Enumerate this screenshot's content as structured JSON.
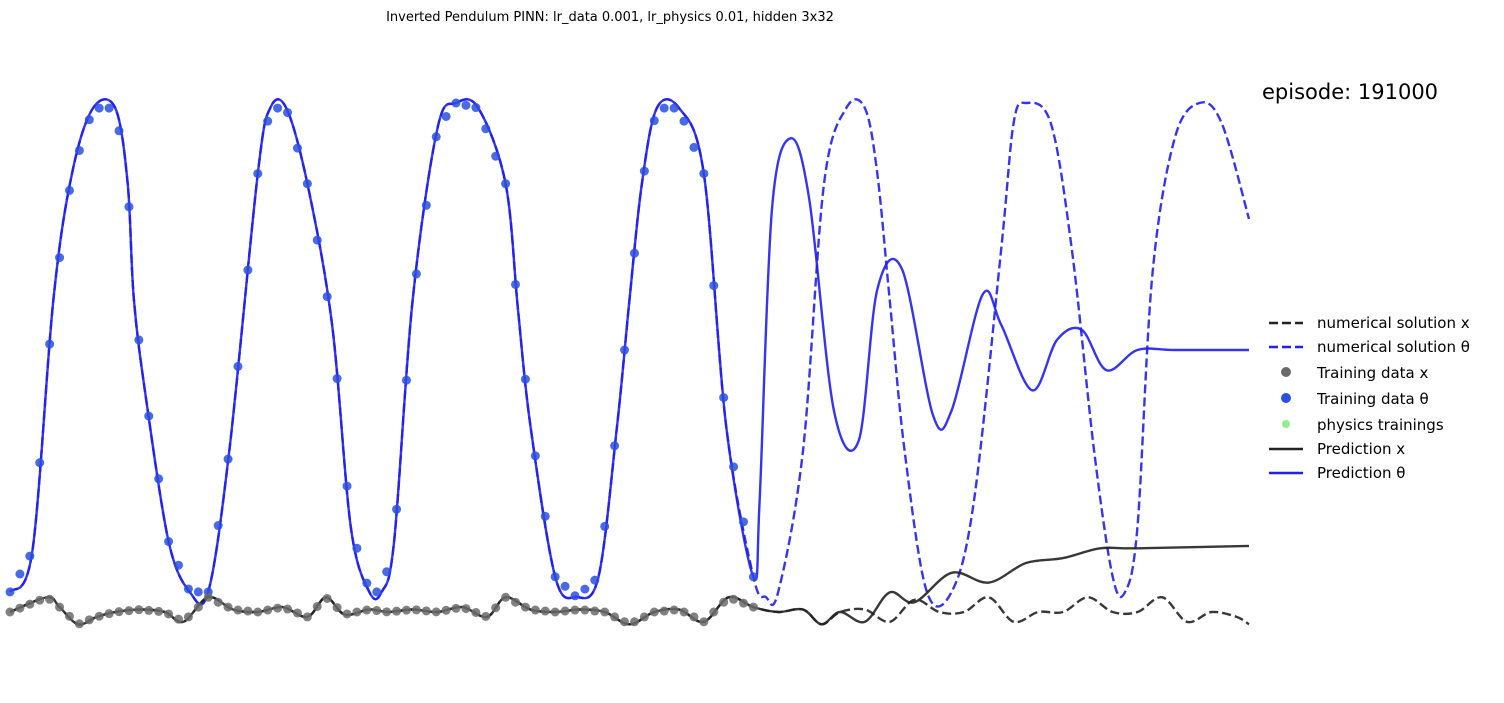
{
  "chart_data": {
    "type": "line",
    "title": "Inverted Pendulum PINN: lr_data 0.001, lr_physics 0.01, hidden 3x32",
    "annotation": "episode: 191000",
    "xlabel": "",
    "ylabel": "",
    "axes_visible": false,
    "grid": false,
    "legend_position": "right",
    "x_range": [
      0,
      1
    ],
    "y_range": [
      0,
      1
    ],
    "legend": [
      "numerical solution x",
      "numerical solution θ",
      "Training data x",
      "Training data θ",
      "physics trainings",
      "Prediction x",
      "Prediction θ"
    ],
    "colors": {
      "black_series": "#222222",
      "blue_series": "#1f1ff0",
      "training_x": "#6b6b6b",
      "training_theta": "#2a4fe0",
      "physics": "#90ee90"
    },
    "series": [
      {
        "name": "numerical solution θ",
        "style": "dashed",
        "x": [
          0.0,
          0.018,
          0.035,
          0.05,
          0.067,
          0.085,
          0.095,
          0.1,
          0.11,
          0.128,
          0.145,
          0.16,
          0.177,
          0.2,
          0.21,
          0.223,
          0.24,
          0.26,
          0.275,
          0.29,
          0.3,
          0.31,
          0.325,
          0.345,
          0.36,
          0.378,
          0.4,
          0.41,
          0.42,
          0.44,
          0.457,
          0.475,
          0.49,
          0.5,
          0.51,
          0.522,
          0.54,
          0.56,
          0.578,
          0.6,
          0.61,
          0.62,
          0.64,
          0.657,
          0.675,
          0.69,
          0.7,
          0.71,
          0.722,
          0.74,
          0.76,
          0.778,
          0.8,
          0.81,
          0.82,
          0.84,
          0.857,
          0.875,
          0.89,
          0.9,
          0.91,
          0.922,
          0.94,
          0.96,
          0.978,
          1.0
        ],
        "y": [
          0.02,
          0.1,
          0.6,
          0.85,
          0.98,
          0.98,
          0.83,
          0.6,
          0.4,
          0.12,
          0.02,
          0.02,
          0.3,
          0.85,
          0.98,
          0.98,
          0.83,
          0.55,
          0.15,
          0.02,
          0.02,
          0.12,
          0.6,
          0.94,
          0.99,
          0.98,
          0.83,
          0.58,
          0.35,
          0.05,
          0.01,
          0.05,
          0.35,
          0.6,
          0.83,
          0.98,
          0.98,
          0.85,
          0.35,
          0.05,
          0.01,
          0.02,
          0.3,
          0.83,
          0.98,
          0.98,
          0.85,
          0.6,
          0.3,
          0.02,
          0.02,
          0.2,
          0.7,
          0.95,
          0.99,
          0.95,
          0.7,
          0.3,
          0.05,
          0.02,
          0.15,
          0.65,
          0.92,
          0.99,
          0.95,
          0.76
        ]
      },
      {
        "name": "Prediction θ",
        "style": "solid",
        "x": [
          0.0,
          0.018,
          0.035,
          0.05,
          0.067,
          0.085,
          0.095,
          0.1,
          0.11,
          0.128,
          0.145,
          0.16,
          0.177,
          0.2,
          0.21,
          0.223,
          0.24,
          0.26,
          0.275,
          0.29,
          0.3,
          0.31,
          0.325,
          0.345,
          0.36,
          0.378,
          0.4,
          0.41,
          0.42,
          0.44,
          0.457,
          0.475,
          0.49,
          0.5,
          0.51,
          0.522,
          0.54,
          0.56,
          0.578,
          0.6,
          0.605,
          0.615,
          0.63,
          0.645,
          0.665,
          0.685,
          0.7,
          0.72,
          0.745,
          0.76,
          0.785,
          0.8,
          0.825,
          0.845,
          0.865,
          0.885,
          0.91,
          0.94,
          1.0
        ],
        "y": [
          0.02,
          0.1,
          0.6,
          0.85,
          0.98,
          0.98,
          0.83,
          0.6,
          0.4,
          0.12,
          0.02,
          0.02,
          0.3,
          0.85,
          0.98,
          0.98,
          0.83,
          0.55,
          0.15,
          0.02,
          0.02,
          0.12,
          0.6,
          0.94,
          0.99,
          0.98,
          0.83,
          0.58,
          0.35,
          0.05,
          0.01,
          0.05,
          0.35,
          0.6,
          0.83,
          0.98,
          0.98,
          0.85,
          0.35,
          0.05,
          0.2,
          0.78,
          0.92,
          0.8,
          0.38,
          0.32,
          0.62,
          0.66,
          0.37,
          0.38,
          0.61,
          0.55,
          0.42,
          0.52,
          0.54,
          0.46,
          0.5,
          0.5,
          0.5
        ]
      },
      {
        "name": "numerical solution x",
        "style": "dashed",
        "x": [
          0.0,
          0.03,
          0.04,
          0.055,
          0.07,
          0.085,
          0.105,
          0.125,
          0.14,
          0.16,
          0.18,
          0.2,
          0.22,
          0.24,
          0.255,
          0.27,
          0.29,
          0.305,
          0.325,
          0.345,
          0.365,
          0.385,
          0.4,
          0.42,
          0.44,
          0.46,
          0.48,
          0.5,
          0.52,
          0.54,
          0.56,
          0.58,
          0.6,
          0.62,
          0.64,
          0.655,
          0.67,
          0.69,
          0.71,
          0.73,
          0.75,
          0.77,
          0.79,
          0.81,
          0.83,
          0.85,
          0.87,
          0.89,
          0.91,
          0.93,
          0.95,
          0.97,
          0.99,
          1.0
        ],
        "y": [
          0.0,
          0.03,
          0.01,
          -0.025,
          -0.01,
          0.0,
          0.005,
          0.0,
          -0.02,
          0.03,
          0.005,
          0.0,
          0.01,
          -0.01,
          0.03,
          -0.005,
          0.005,
          0.0,
          0.005,
          0.0,
          0.01,
          -0.01,
          0.03,
          0.005,
          0.0,
          0.005,
          0.0,
          -0.025,
          0.0,
          0.005,
          -0.02,
          0.03,
          0.01,
          0.0,
          0.005,
          -0.025,
          0.0,
          0.005,
          -0.02,
          0.025,
          0.0,
          0.0,
          0.03,
          -0.02,
          0.0,
          0.0,
          0.03,
          0.0,
          0.0,
          0.03,
          -0.02,
          0.0,
          -0.01,
          -0.025
        ]
      },
      {
        "name": "Prediction x",
        "style": "solid",
        "x": [
          0.0,
          0.03,
          0.04,
          0.055,
          0.07,
          0.085,
          0.105,
          0.125,
          0.14,
          0.16,
          0.18,
          0.2,
          0.22,
          0.24,
          0.255,
          0.27,
          0.29,
          0.305,
          0.325,
          0.345,
          0.365,
          0.385,
          0.4,
          0.42,
          0.44,
          0.46,
          0.48,
          0.5,
          0.52,
          0.54,
          0.56,
          0.58,
          0.6,
          0.62,
          0.64,
          0.655,
          0.67,
          0.69,
          0.71,
          0.73,
          0.76,
          0.79,
          0.82,
          0.85,
          0.88,
          0.91,
          1.0
        ],
        "y": [
          0.0,
          0.03,
          0.01,
          -0.025,
          -0.01,
          0.0,
          0.005,
          0.0,
          -0.02,
          0.03,
          0.005,
          0.0,
          0.01,
          -0.01,
          0.03,
          -0.005,
          0.005,
          0.0,
          0.005,
          0.0,
          0.01,
          -0.01,
          0.03,
          0.005,
          0.0,
          0.005,
          0.0,
          -0.025,
          0.0,
          0.005,
          -0.02,
          0.03,
          0.01,
          0.0,
          0.005,
          -0.025,
          0.0,
          -0.02,
          0.04,
          0.02,
          0.08,
          0.06,
          0.1,
          0.11,
          0.13,
          0.13,
          0.135
        ]
      }
    ],
    "training_data_x": {
      "x": [
        0.0,
        0.008,
        0.016,
        0.024,
        0.032,
        0.04,
        0.048,
        0.056,
        0.064,
        0.072,
        0.08,
        0.088,
        0.096,
        0.104,
        0.112,
        0.12,
        0.128,
        0.136,
        0.144,
        0.152,
        0.16,
        0.168,
        0.176,
        0.184,
        0.192,
        0.2,
        0.208,
        0.216,
        0.224,
        0.232,
        0.24,
        0.248,
        0.256,
        0.264,
        0.272,
        0.28,
        0.288,
        0.296,
        0.304,
        0.312,
        0.32,
        0.328,
        0.336,
        0.344,
        0.352,
        0.36,
        0.368,
        0.376,
        0.384,
        0.392,
        0.4,
        0.408,
        0.416,
        0.424,
        0.432,
        0.44,
        0.448,
        0.456,
        0.464,
        0.472,
        0.48,
        0.488,
        0.496,
        0.504,
        0.512,
        0.52,
        0.528,
        0.536,
        0.544,
        0.552,
        0.56,
        0.568,
        0.576,
        0.584,
        0.592,
        0.6
      ]
    },
    "training_data_theta": {
      "x": [
        0.0,
        0.008,
        0.016,
        0.024,
        0.032,
        0.04,
        0.048,
        0.056,
        0.064,
        0.072,
        0.08,
        0.088,
        0.096,
        0.104,
        0.112,
        0.12,
        0.128,
        0.136,
        0.144,
        0.152,
        0.16,
        0.168,
        0.176,
        0.184,
        0.192,
        0.2,
        0.208,
        0.216,
        0.224,
        0.232,
        0.24,
        0.248,
        0.256,
        0.264,
        0.272,
        0.28,
        0.288,
        0.296,
        0.304,
        0.312,
        0.32,
        0.328,
        0.336,
        0.344,
        0.352,
        0.36,
        0.368,
        0.376,
        0.384,
        0.392,
        0.4,
        0.408,
        0.416,
        0.424,
        0.432,
        0.44,
        0.448,
        0.456,
        0.464,
        0.472,
        0.48,
        0.488,
        0.496,
        0.504,
        0.512,
        0.52,
        0.528,
        0.536,
        0.544,
        0.552,
        0.56,
        0.568,
        0.576,
        0.584,
        0.592,
        0.6
      ]
    }
  }
}
